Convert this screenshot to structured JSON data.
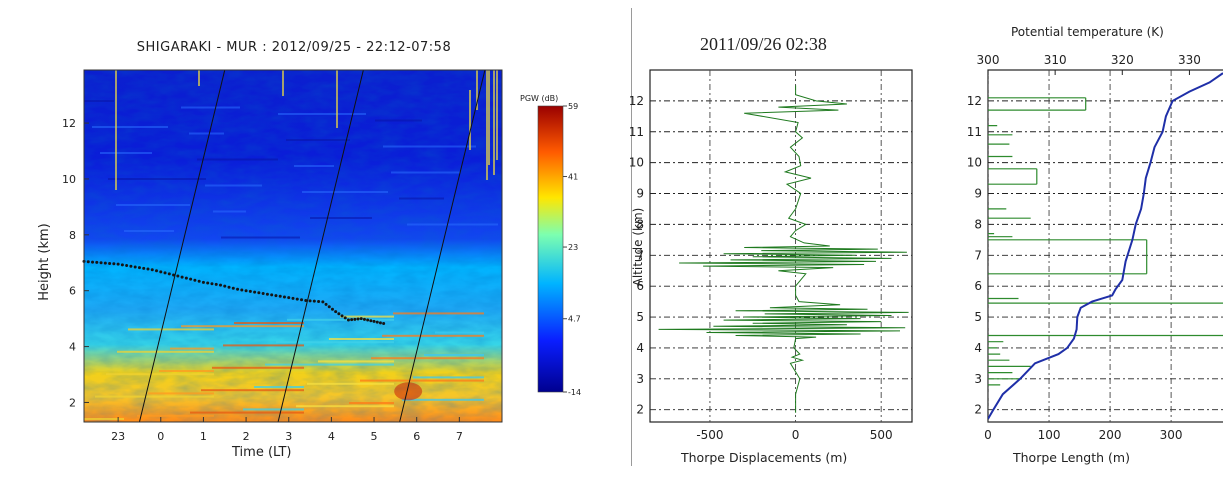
{
  "chart_data": [
    {
      "type": "heatmap",
      "title": "SHIGARAKI - MUR : 2012/09/25 - 22:12-07:58",
      "xlabel": "Time (LT)",
      "ylabel": "Height (km)",
      "x_tick_labels": [
        "23",
        "0",
        "1",
        "2",
        "3",
        "4",
        "5",
        "6",
        "7"
      ],
      "y_tick_labels": [
        "2",
        "4",
        "6",
        "8",
        "10",
        "12"
      ],
      "xlim": [
        22.2,
        32.0
      ],
      "ylim": [
        1.3,
        13.9
      ],
      "colorbar": {
        "label": "PGW (dB)",
        "ticks": [
          "59",
          "41",
          "23",
          "4.7",
          "-14"
        ],
        "range": [
          -14,
          59
        ]
      },
      "dotted_layer": {
        "x": [
          22.2,
          22.6,
          23.0,
          23.4,
          23.8,
          24.2,
          24.6,
          25.0,
          25.4,
          25.8,
          26.2,
          26.6,
          27.0,
          27.4,
          27.8,
          28.1,
          28.4,
          28.7,
          29.0,
          29.3
        ],
        "y": [
          7.05,
          7.0,
          6.95,
          6.85,
          6.75,
          6.6,
          6.45,
          6.3,
          6.2,
          6.05,
          5.95,
          5.85,
          5.75,
          5.65,
          5.6,
          5.25,
          4.95,
          5.0,
          4.9,
          4.8
        ]
      },
      "slanted_lines": [
        {
          "x": [
            23.5,
            25.5
          ],
          "y": [
            1.3,
            13.9
          ]
        },
        {
          "x": [
            26.75,
            28.75
          ],
          "y": [
            1.3,
            13.9
          ]
        },
        {
          "x": [
            29.6,
            31.6
          ],
          "y": [
            1.3,
            13.9
          ]
        }
      ]
    },
    {
      "type": "line",
      "title": "2011/09/26   02:38",
      "xlabel": "Thorpe Displacements (m)",
      "ylabel": "Altitude (km)",
      "xlim": [
        -850,
        680
      ],
      "ylim": [
        1.6,
        13.0
      ],
      "x_tick_labels": [
        "-500",
        "0",
        "500"
      ],
      "y_tick_labels": [
        "2",
        "3",
        "4",
        "5",
        "6",
        "7",
        "8",
        "9",
        "10",
        "11",
        "12"
      ],
      "color": "#1f7a1f",
      "grid": true,
      "series": [
        {
          "altitude_km": [
            1.9,
            2.5,
            3.0,
            3.5,
            3.6,
            3.7,
            3.8,
            4.0,
            4.3,
            4.35,
            4.4,
            4.45,
            4.5,
            4.55,
            4.6,
            4.65,
            4.7,
            4.75,
            4.8,
            4.85,
            4.9,
            4.95,
            5.0,
            5.05,
            5.1,
            5.15,
            5.2,
            5.25,
            5.3,
            5.4,
            5.5,
            5.7,
            6.0,
            6.4,
            6.5,
            6.6,
            6.65,
            6.7,
            6.75,
            6.8,
            6.85,
            6.9,
            6.95,
            7.0,
            7.05,
            7.1,
            7.15,
            7.2,
            7.25,
            7.3,
            7.4,
            7.6,
            7.8,
            8.0,
            8.2,
            8.5,
            9.0,
            9.3,
            9.5,
            9.7,
            9.9,
            10.2,
            10.5,
            10.8,
            11.0,
            11.3,
            11.6,
            11.7,
            11.8,
            11.9,
            12.0,
            12.2,
            12.5
          ],
          "displacement_m": [
            0,
            0,
            25,
            -30,
            40,
            -20,
            25,
            -10,
            0,
            120,
            -350,
            380,
            -520,
            610,
            -800,
            640,
            -480,
            300,
            -250,
            500,
            -420,
            380,
            -300,
            560,
            -180,
            660,
            -350,
            420,
            -150,
            260,
            20,
            0,
            0,
            60,
            -100,
            220,
            -540,
            400,
            -680,
            470,
            -380,
            560,
            -250,
            350,
            -420,
            650,
            -200,
            480,
            -300,
            200,
            50,
            -30,
            0,
            60,
            -40,
            0,
            30,
            -50,
            90,
            -60,
            30,
            20,
            -30,
            40,
            0,
            15,
            -300,
            250,
            -100,
            300,
            120,
            0,
            0
          ]
        }
      ]
    },
    {
      "type": "line",
      "title": "Potential temperature (K)",
      "xlabel": "Thorpe Length (m)",
      "ylabel": "",
      "ylim": [
        1.6,
        13.0
      ],
      "x_tick_labels": [
        "0",
        "100",
        "200",
        "300"
      ],
      "xlim": [
        0,
        385
      ],
      "top_x_tick_labels": [
        "300",
        "310",
        "320",
        "330"
      ],
      "top_xlim": [
        300,
        335
      ],
      "y_tick_labels": [
        "2",
        "3",
        "4",
        "5",
        "6",
        "7",
        "8",
        "9",
        "10",
        "11",
        "12"
      ],
      "grid": true,
      "series": [
        {
          "name": "Thorpe length",
          "color": "#2e8b2e",
          "altitude_km": [
            2.8,
            3.0,
            3.2,
            3.4,
            3.6,
            3.8,
            4.0,
            4.2,
            4.4,
            5.45,
            5.6,
            6.4,
            7.5,
            7.6,
            7.7,
            8.2,
            8.5,
            9.3,
            9.8,
            10.2,
            10.6,
            10.9,
            11.2,
            11.7,
            12.1
          ],
          "length_m": [
            20,
            55,
            40,
            70,
            35,
            20,
            15,
            25,
            400,
            400,
            50,
            260,
            260,
            40,
            10,
            70,
            30,
            80,
            80,
            40,
            35,
            40,
            15,
            160,
            160
          ]
        },
        {
          "name": "Potential temperature",
          "color": "#1f2fa8",
          "altitude_km": [
            1.7,
            2.0,
            2.5,
            3.0,
            3.5,
            3.8,
            4.0,
            4.3,
            4.6,
            5.0,
            5.3,
            5.5,
            5.7,
            5.9,
            6.2,
            6.8,
            7.5,
            8.0,
            8.5,
            9.0,
            9.5,
            10.0,
            10.5,
            11.0,
            11.5,
            12.0,
            12.3,
            12.6,
            12.9
          ],
          "theta_K": [
            300,
            300.8,
            302.2,
            304.8,
            307.0,
            310.5,
            311.8,
            312.8,
            313.2,
            313.3,
            313.8,
            315.5,
            318.5,
            319.0,
            320.0,
            320.5,
            321.5,
            322.0,
            322.8,
            323.2,
            323.5,
            324.2,
            324.8,
            326.0,
            326.5,
            327.5,
            330.0,
            333.0,
            335.0
          ]
        }
      ]
    }
  ]
}
